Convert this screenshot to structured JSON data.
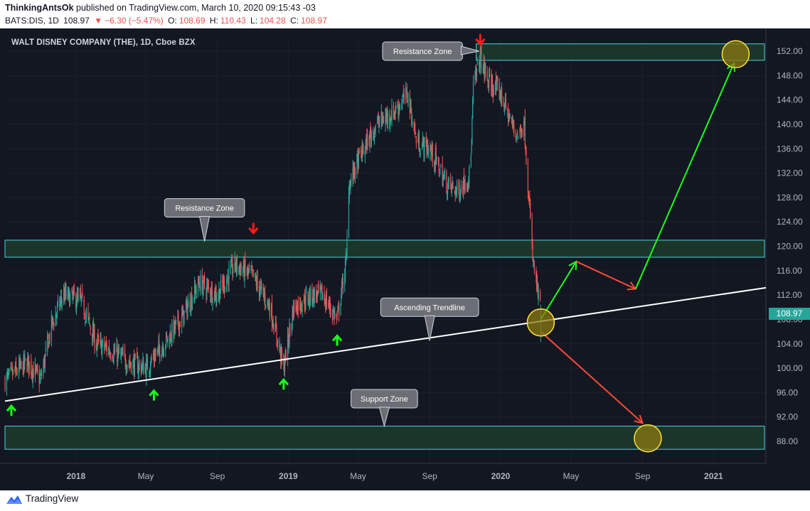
{
  "header": {
    "publisher": "ThinkingAntsOk",
    "published_on": "published on TradingView.com, March 10, 2020 09:15:43 -03",
    "symbol": "BATS:DIS, 1D",
    "last": "108.97",
    "change": "−6.30 (−5.47%)",
    "open_label": "O:",
    "open": "108.69",
    "high_label": "H:",
    "high": "110.43",
    "low_label": "L:",
    "low": "104.28",
    "close_label": "C:",
    "close": "108.97"
  },
  "footer": {
    "brand": "TradingView"
  },
  "colors": {
    "background": "#131722",
    "up": "#26a69a",
    "down": "#ef5350",
    "zone_fill": "#1e3b2a",
    "zone_stroke": "#4dd0e1",
    "arrow_green": "#1aff1a",
    "arrow_red": "#ff1a1a",
    "circle_fill": "#8a7a10",
    "circle_stroke": "#ffe13a",
    "trendline": "#ffffff"
  },
  "chart_data": {
    "type": "candlestick",
    "title": "WALT DISNEY COMPANY (THE), 1D, Cboe BZX",
    "last_price": "108.97",
    "y_ticks": [
      "152.00",
      "148.00",
      "144.00",
      "140.00",
      "136.00",
      "132.00",
      "128.00",
      "124.00",
      "120.00",
      "116.00",
      "112.00",
      "108.00",
      "104.00",
      "100.00",
      "96.00",
      "92.00",
      "88.00"
    ],
    "y_tick_values": [
      152,
      148,
      144,
      140,
      136,
      132,
      128,
      124,
      120,
      116,
      112,
      108,
      104,
      100,
      96,
      92,
      88
    ],
    "x_ticks": [
      "2018",
      "May",
      "Sep",
      "2019",
      "May",
      "Sep",
      "2020",
      "May",
      "Sep",
      "2021"
    ],
    "x_tick_dates": [
      "2018-01-01",
      "2018-05-01",
      "2018-09-01",
      "2019-01-01",
      "2019-05-01",
      "2019-09-01",
      "2020-01-01",
      "2020-05-01",
      "2020-09-01",
      "2021-01-01"
    ],
    "x_range": [
      "2017-09-01",
      "2021-04-01"
    ],
    "price_path": [
      {
        "date": "2017-09-01",
        "close": 98
      },
      {
        "date": "2017-10-10",
        "close": 101
      },
      {
        "date": "2017-11-01",
        "close": 98
      },
      {
        "date": "2017-11-20",
        "close": 107
      },
      {
        "date": "2017-12-10",
        "close": 112
      },
      {
        "date": "2018-01-10",
        "close": 111
      },
      {
        "date": "2018-02-05",
        "close": 104
      },
      {
        "date": "2018-03-01",
        "close": 103
      },
      {
        "date": "2018-04-01",
        "close": 101
      },
      {
        "date": "2018-05-01",
        "close": 100
      },
      {
        "date": "2018-06-01",
        "close": 104
      },
      {
        "date": "2018-07-01",
        "close": 108
      },
      {
        "date": "2018-08-01",
        "close": 114
      },
      {
        "date": "2018-09-01",
        "close": 112
      },
      {
        "date": "2018-10-01",
        "close": 117
      },
      {
        "date": "2018-11-01",
        "close": 115
      },
      {
        "date": "2018-12-01",
        "close": 110
      },
      {
        "date": "2018-12-24",
        "close": 100
      },
      {
        "date": "2019-01-10",
        "close": 110
      },
      {
        "date": "2019-02-10",
        "close": 112
      },
      {
        "date": "2019-03-01",
        "close": 112
      },
      {
        "date": "2019-03-26",
        "close": 108
      },
      {
        "date": "2019-04-11",
        "close": 118
      },
      {
        "date": "2019-04-15",
        "close": 130
      },
      {
        "date": "2019-05-01",
        "close": 134
      },
      {
        "date": "2019-06-01",
        "close": 140
      },
      {
        "date": "2019-07-01",
        "close": 142
      },
      {
        "date": "2019-07-25",
        "close": 145
      },
      {
        "date": "2019-08-10",
        "close": 137
      },
      {
        "date": "2019-09-01",
        "close": 136
      },
      {
        "date": "2019-10-01",
        "close": 130
      },
      {
        "date": "2019-10-20",
        "close": 129
      },
      {
        "date": "2019-11-10",
        "close": 132
      },
      {
        "date": "2019-11-15",
        "close": 146
      },
      {
        "date": "2019-11-27",
        "close": 151
      },
      {
        "date": "2019-12-10",
        "close": 147
      },
      {
        "date": "2020-01-01",
        "close": 145
      },
      {
        "date": "2020-01-20",
        "close": 140
      },
      {
        "date": "2020-02-01",
        "close": 138
      },
      {
        "date": "2020-02-10",
        "close": 141
      },
      {
        "date": "2020-02-25",
        "close": 118
      },
      {
        "date": "2020-03-10",
        "close": 108.97
      }
    ],
    "zones": [
      {
        "label": "Resistance Zone",
        "low": 150.5,
        "high": 153.2,
        "from": "2019-11-20",
        "to": "2021-04-01"
      },
      {
        "label": "Resistance Zone",
        "low": 118.2,
        "high": 121,
        "from": "2017-09-01",
        "to": "2021-04-01"
      },
      {
        "label": "Support Zone",
        "low": 86.7,
        "high": 90.5,
        "from": "2017-09-01",
        "to": "2021-04-01"
      }
    ],
    "trendline": {
      "label": "Ascending Trendline",
      "from": {
        "date": "2017-09-01",
        "value": 94.6
      },
      "to": {
        "date": "2021-04-01",
        "value": 113.2
      }
    },
    "annotations": [
      {
        "text": "Resistance Zone",
        "anchor_date": "2018-08-10",
        "anchor_value": 120.8,
        "box_date": "2018-08-10",
        "box_value": 126.3
      },
      {
        "text": "Resistance Zone",
        "anchor_date": "2019-11-25",
        "anchor_value": 152,
        "box_date": "2019-09-01",
        "box_value": 152
      },
      {
        "text": "Ascending Trendline",
        "anchor_date": "2019-09-01",
        "anchor_value": 104.5,
        "box_date": "2019-09-01",
        "box_value": 110
      },
      {
        "text": "Support Zone",
        "anchor_date": "2019-06-15",
        "anchor_value": 90.5,
        "box_date": "2019-06-15",
        "box_value": 95
      }
    ],
    "green_up_arrows": [
      {
        "date": "2017-09-12",
        "value": 93
      },
      {
        "date": "2018-05-15",
        "value": 95.5
      },
      {
        "date": "2018-12-24",
        "value": 97.3
      },
      {
        "date": "2019-03-26",
        "value": 104.5
      }
    ],
    "red_down_arrows": [
      {
        "date": "2018-11-02",
        "value": 123
      },
      {
        "date": "2019-11-27",
        "value": 154
      }
    ],
    "projection_green": [
      {
        "date": "2020-03-10",
        "value": 108
      },
      {
        "date": "2020-05-10",
        "value": 117.5
      },
      {
        "date": "2020-08-20",
        "value": 113
      },
      {
        "date": "2021-02-05",
        "value": 150
      }
    ],
    "projection_red": [
      {
        "date": "2020-03-10",
        "value": 106
      },
      {
        "date": "2020-09-01",
        "value": 91
      }
    ],
    "target_circles": [
      {
        "date": "2021-02-08",
        "value": 151.5
      },
      {
        "date": "2020-03-10",
        "value": 107.5
      },
      {
        "date": "2020-09-10",
        "value": 88.5
      }
    ]
  }
}
